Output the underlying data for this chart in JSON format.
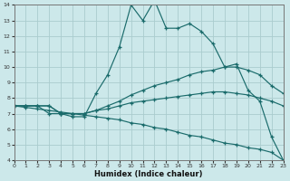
{
  "xlabel": "Humidex (Indice chaleur)",
  "bg_color": "#cce8ea",
  "grid_color": "#aaccce",
  "line_color": "#1a6b6b",
  "xlim": [
    0,
    23
  ],
  "ylim": [
    4,
    14
  ],
  "xticks": [
    0,
    1,
    2,
    3,
    4,
    5,
    6,
    7,
    8,
    9,
    10,
    11,
    12,
    13,
    14,
    15,
    16,
    17,
    18,
    19,
    20,
    21,
    22,
    23
  ],
  "yticks": [
    4,
    5,
    6,
    7,
    8,
    9,
    10,
    11,
    12,
    13,
    14
  ],
  "s1x": [
    0,
    1,
    2,
    3,
    4,
    5,
    6,
    7,
    8,
    9,
    10,
    11,
    12,
    13,
    14,
    15,
    16,
    17,
    18,
    19,
    20,
    21,
    22,
    23
  ],
  "s1y": [
    7.5,
    7.5,
    7.5,
    7.0,
    7.0,
    6.8,
    6.8,
    8.3,
    9.5,
    11.3,
    14.0,
    13.0,
    14.3,
    12.5,
    12.5,
    12.8,
    12.3,
    11.5,
    10.0,
    10.2,
    8.5,
    7.8,
    5.5,
    4.0
  ],
  "s2x": [
    0,
    1,
    2,
    3,
    4,
    5,
    6,
    7,
    8,
    9,
    10,
    11,
    12,
    13,
    14,
    15,
    16,
    17,
    18,
    19,
    20,
    21,
    22,
    23
  ],
  "s2y": [
    7.5,
    7.5,
    7.5,
    7.5,
    7.0,
    7.0,
    7.0,
    7.2,
    7.5,
    7.8,
    8.2,
    8.5,
    8.8,
    9.0,
    9.2,
    9.5,
    9.7,
    9.8,
    10.0,
    10.0,
    9.8,
    9.5,
    8.8,
    8.3
  ],
  "s3x": [
    0,
    1,
    2,
    3,
    4,
    5,
    6,
    7,
    8,
    9,
    10,
    11,
    12,
    13,
    14,
    15,
    16,
    17,
    18,
    19,
    20,
    21,
    22,
    23
  ],
  "s3y": [
    7.5,
    7.5,
    7.5,
    7.5,
    7.0,
    7.0,
    7.0,
    7.2,
    7.3,
    7.5,
    7.7,
    7.8,
    7.9,
    8.0,
    8.1,
    8.2,
    8.3,
    8.4,
    8.4,
    8.3,
    8.2,
    8.0,
    7.8,
    7.5
  ],
  "s4x": [
    0,
    1,
    2,
    3,
    4,
    5,
    6,
    7,
    8,
    9,
    10,
    11,
    12,
    13,
    14,
    15,
    16,
    17,
    18,
    19,
    20,
    21,
    22,
    23
  ],
  "s4y": [
    7.5,
    7.4,
    7.3,
    7.2,
    7.1,
    7.0,
    6.9,
    6.8,
    6.7,
    6.6,
    6.4,
    6.3,
    6.1,
    6.0,
    5.8,
    5.6,
    5.5,
    5.3,
    5.1,
    5.0,
    4.8,
    4.7,
    4.5,
    4.0
  ]
}
